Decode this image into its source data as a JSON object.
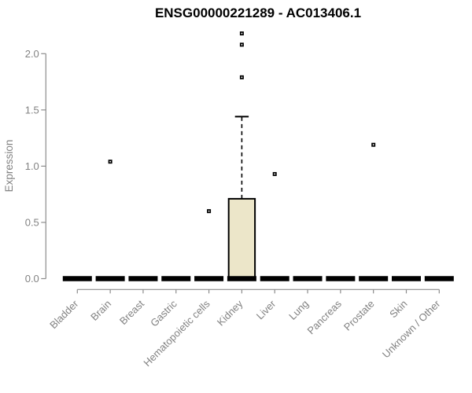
{
  "chart_data": {
    "type": "boxplot",
    "title": "ENSG00000221289 - AC013406.1",
    "ylabel": "Expression",
    "xlabel": "",
    "ylim": [
      0,
      2.0
    ],
    "yticks": [
      "0.0",
      "0.5",
      "1.0",
      "1.5",
      "2.0"
    ],
    "ytick_values": [
      0,
      0.5,
      1.0,
      1.5,
      2.0
    ],
    "grid": false,
    "legend_position": "none",
    "categories": [
      "Bladder",
      "Brain",
      "Breast",
      "Gastric",
      "Hematopoietic cells",
      "Kidney",
      "Liver",
      "Lung",
      "Pancreas",
      "Prostate",
      "Skin",
      "Unknown / Other"
    ],
    "series": [
      {
        "category": "Bladder",
        "q1": 0,
        "median": 0,
        "q3": 0,
        "whisker_low": 0,
        "whisker_high": 0,
        "outliers": []
      },
      {
        "category": "Brain",
        "q1": 0,
        "median": 0,
        "q3": 0,
        "whisker_low": 0,
        "whisker_high": 0,
        "outliers": [
          1.04
        ]
      },
      {
        "category": "Breast",
        "q1": 0,
        "median": 0,
        "q3": 0,
        "whisker_low": 0,
        "whisker_high": 0,
        "outliers": []
      },
      {
        "category": "Gastric",
        "q1": 0,
        "median": 0,
        "q3": 0,
        "whisker_low": 0,
        "whisker_high": 0,
        "outliers": []
      },
      {
        "category": "Hematopoietic cells",
        "q1": 0,
        "median": 0,
        "q3": 0,
        "whisker_low": 0,
        "whisker_high": 0,
        "outliers": [
          0.6
        ]
      },
      {
        "category": "Kidney",
        "q1": 0,
        "median": 0,
        "q3": 0.71,
        "whisker_low": 0,
        "whisker_high": 1.44,
        "outliers": [
          1.79,
          2.08,
          2.18
        ]
      },
      {
        "category": "Liver",
        "q1": 0,
        "median": 0,
        "q3": 0,
        "whisker_low": 0,
        "whisker_high": 0,
        "outliers": [
          0.93
        ]
      },
      {
        "category": "Lung",
        "q1": 0,
        "median": 0,
        "q3": 0,
        "whisker_low": 0,
        "whisker_high": 0,
        "outliers": []
      },
      {
        "category": "Pancreas",
        "q1": 0,
        "median": 0,
        "q3": 0,
        "whisker_low": 0,
        "whisker_high": 0,
        "outliers": []
      },
      {
        "category": "Prostate",
        "q1": 0,
        "median": 0,
        "q3": 0,
        "whisker_low": 0,
        "whisker_high": 0,
        "outliers": [
          1.19
        ]
      },
      {
        "category": "Skin",
        "q1": 0,
        "median": 0,
        "q3": 0,
        "whisker_low": 0,
        "whisker_high": 0,
        "outliers": []
      },
      {
        "category": "Unknown / Other",
        "q1": 0,
        "median": 0,
        "q3": 0,
        "whisker_low": 0,
        "whisker_high": 0,
        "outliers": []
      }
    ],
    "colors": {
      "box_fill": "#ECE6C9",
      "box_border": "#000000",
      "median": "#000000",
      "whisker": "#000000",
      "outlier": "#000000",
      "axis_line": "#8C8C8C",
      "tick_label": "#828282",
      "title": "#000000"
    }
  }
}
